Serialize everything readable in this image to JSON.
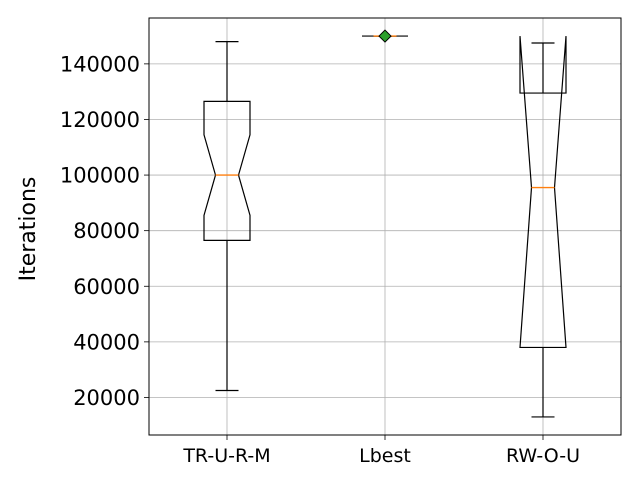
{
  "chart_data": {
    "type": "boxplot",
    "title": "",
    "xlabel": "",
    "ylabel": "Iterations",
    "ylim": [
      6500,
      156500
    ],
    "yticks": [
      20000,
      40000,
      60000,
      80000,
      100000,
      120000,
      140000
    ],
    "ytick_labels": [
      "20000",
      "40000",
      "60000",
      "80000",
      "100000",
      "120000",
      "140000"
    ],
    "categories": [
      "TR-U-R-M",
      "Lbest",
      "RW-O-U"
    ],
    "grid": true,
    "notched": true,
    "boxes": [
      {
        "category": "TR-U-R-M",
        "whisker_low": 22500,
        "q1": 76500,
        "notch_low": 85500,
        "median": 100000,
        "notch_high": 114500,
        "q3": 126500,
        "whisker_high": 148000,
        "outliers": []
      },
      {
        "category": "Lbest",
        "whisker_low": 150000,
        "q1": 150000,
        "notch_low": 150000,
        "median": 150000,
        "notch_high": 150000,
        "q3": 150000,
        "whisker_high": 150000,
        "outliers": [
          150000
        ]
      },
      {
        "category": "RW-O-U",
        "whisker_low": 13000,
        "q1": 38000,
        "notch_low": 38000,
        "median": 95500,
        "notch_high": 150000,
        "q3": 129500,
        "whisker_high": 147500,
        "outliers": []
      }
    ],
    "colors": {
      "box": "#000000",
      "median": "#ff7f0e",
      "grid": "#b0b0b0",
      "outlier_fill": "#2ca02c"
    }
  }
}
